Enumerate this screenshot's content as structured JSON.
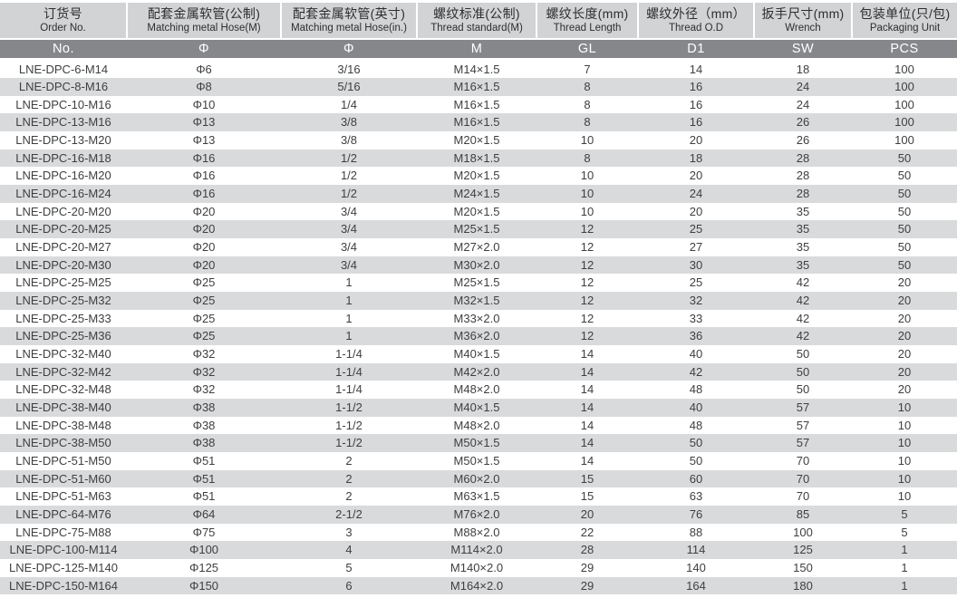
{
  "theme": {
    "band_light": "#d2d3d5",
    "band_dark": "#85878a",
    "stripe": "#d9dadc",
    "text_dark": "#2d2e30",
    "text_data": "#3e3f41"
  },
  "table": {
    "columns": [
      {
        "key": "order-no",
        "zh": "订货号",
        "en": "Order No.",
        "code": "No."
      },
      {
        "key": "hose-metric",
        "zh": "配套金属软管(公制)",
        "en": "Matching metal Hose(M)",
        "code": "Φ"
      },
      {
        "key": "hose-inch",
        "zh": "配套金属软管(英寸)",
        "en": "Matching metal Hose(in.)",
        "code": "Φ"
      },
      {
        "key": "thread-standard",
        "zh": "螺纹标准(公制)",
        "en": "Thread standard(M)",
        "code": "M"
      },
      {
        "key": "thread-length",
        "zh": "螺纹长度(mm)",
        "en": "Thread  Length",
        "code": "GL"
      },
      {
        "key": "thread-od",
        "zh": "螺纹外径（mm）",
        "en": "Thread O.D",
        "code": "D1"
      },
      {
        "key": "wrench",
        "zh": "扳手尺寸(mm)",
        "en": "Wrench",
        "code": "SW"
      },
      {
        "key": "packaging",
        "zh": "包装单位(只/包)",
        "en": "Packaging Unit",
        "code": "PCS"
      }
    ],
    "rows": [
      [
        "LNE-DPC-6-M14",
        "Φ6",
        "3/16",
        "M14×1.5",
        "7",
        "14",
        "18",
        "100"
      ],
      [
        "LNE-DPC-8-M16",
        "Φ8",
        "5/16",
        "M16×1.5",
        "8",
        "16",
        "24",
        "100"
      ],
      [
        "LNE-DPC-10-M16",
        "Φ10",
        "1/4",
        "M16×1.5",
        "8",
        "16",
        "24",
        "100"
      ],
      [
        "LNE-DPC-13-M16",
        "Φ13",
        "3/8",
        "M16×1.5",
        "8",
        "16",
        "26",
        "100"
      ],
      [
        "LNE-DPC-13-M20",
        "Φ13",
        "3/8",
        "M20×1.5",
        "10",
        "20",
        "26",
        "100"
      ],
      [
        "LNE-DPC-16-M18",
        "Φ16",
        "1/2",
        "M18×1.5",
        "8",
        "18",
        "28",
        "50"
      ],
      [
        "LNE-DPC-16-M20",
        "Φ16",
        "1/2",
        "M20×1.5",
        "10",
        "20",
        "28",
        "50"
      ],
      [
        "LNE-DPC-16-M24",
        "Φ16",
        "1/2",
        "M24×1.5",
        "10",
        "24",
        "28",
        "50"
      ],
      [
        "LNE-DPC-20-M20",
        "Φ20",
        "3/4",
        "M20×1.5",
        "10",
        "20",
        "35",
        "50"
      ],
      [
        "LNE-DPC-20-M25",
        "Φ20",
        "3/4",
        "M25×1.5",
        "12",
        "25",
        "35",
        "50"
      ],
      [
        "LNE-DPC-20-M27",
        "Φ20",
        "3/4",
        "M27×2.0",
        "12",
        "27",
        "35",
        "50"
      ],
      [
        "LNE-DPC-20-M30",
        "Φ20",
        "3/4",
        "M30×2.0",
        "12",
        "30",
        "35",
        "50"
      ],
      [
        "LNE-DPC-25-M25",
        "Φ25",
        "1",
        "M25×1.5",
        "12",
        "25",
        "42",
        "20"
      ],
      [
        "LNE-DPC-25-M32",
        "Φ25",
        "1",
        "M32×1.5",
        "12",
        "32",
        "42",
        "20"
      ],
      [
        "LNE-DPC-25-M33",
        "Φ25",
        "1",
        "M33×2.0",
        "12",
        "33",
        "42",
        "20"
      ],
      [
        "LNE-DPC-25-M36",
        "Φ25",
        "1",
        "M36×2.0",
        "12",
        "36",
        "42",
        "20"
      ],
      [
        "LNE-DPC-32-M40",
        "Φ32",
        "1-1/4",
        "M40×1.5",
        "14",
        "40",
        "50",
        "20"
      ],
      [
        "LNE-DPC-32-M42",
        "Φ32",
        "1-1/4",
        "M42×2.0",
        "14",
        "42",
        "50",
        "20"
      ],
      [
        "LNE-DPC-32-M48",
        "Φ32",
        "1-1/4",
        "M48×2.0",
        "14",
        "48",
        "50",
        "20"
      ],
      [
        "LNE-DPC-38-M40",
        "Φ38",
        "1-1/2",
        "M40×1.5",
        "14",
        "40",
        "57",
        "10"
      ],
      [
        "LNE-DPC-38-M48",
        "Φ38",
        "1-1/2",
        "M48×2.0",
        "14",
        "48",
        "57",
        "10"
      ],
      [
        "LNE-DPC-38-M50",
        "Φ38",
        "1-1/2",
        "M50×1.5",
        "14",
        "50",
        "57",
        "10"
      ],
      [
        "LNE-DPC-51-M50",
        "Φ51",
        "2",
        "M50×1.5",
        "14",
        "50",
        "70",
        "10"
      ],
      [
        "LNE-DPC-51-M60",
        "Φ51",
        "2",
        "M60×2.0",
        "15",
        "60",
        "70",
        "10"
      ],
      [
        "LNE-DPC-51-M63",
        "Φ51",
        "2",
        "M63×1.5",
        "15",
        "63",
        "70",
        "10"
      ],
      [
        "LNE-DPC-64-M76",
        "Φ64",
        "2-1/2",
        "M76×2.0",
        "20",
        "76",
        "85",
        "5"
      ],
      [
        "LNE-DPC-75-M88",
        "Φ75",
        "3",
        "M88×2.0",
        "22",
        "88",
        "100",
        "5"
      ],
      [
        "LNE-DPC-100-M114",
        "Φ100",
        "4",
        "M114×2.0",
        "28",
        "114",
        "125",
        "1"
      ],
      [
        "LNE-DPC-125-M140",
        "Φ125",
        "5",
        "M140×2.0",
        "29",
        "140",
        "150",
        "1"
      ],
      [
        "LNE-DPC-150-M164",
        "Φ150",
        "6",
        "M164×2.0",
        "29",
        "164",
        "180",
        "1"
      ]
    ]
  }
}
